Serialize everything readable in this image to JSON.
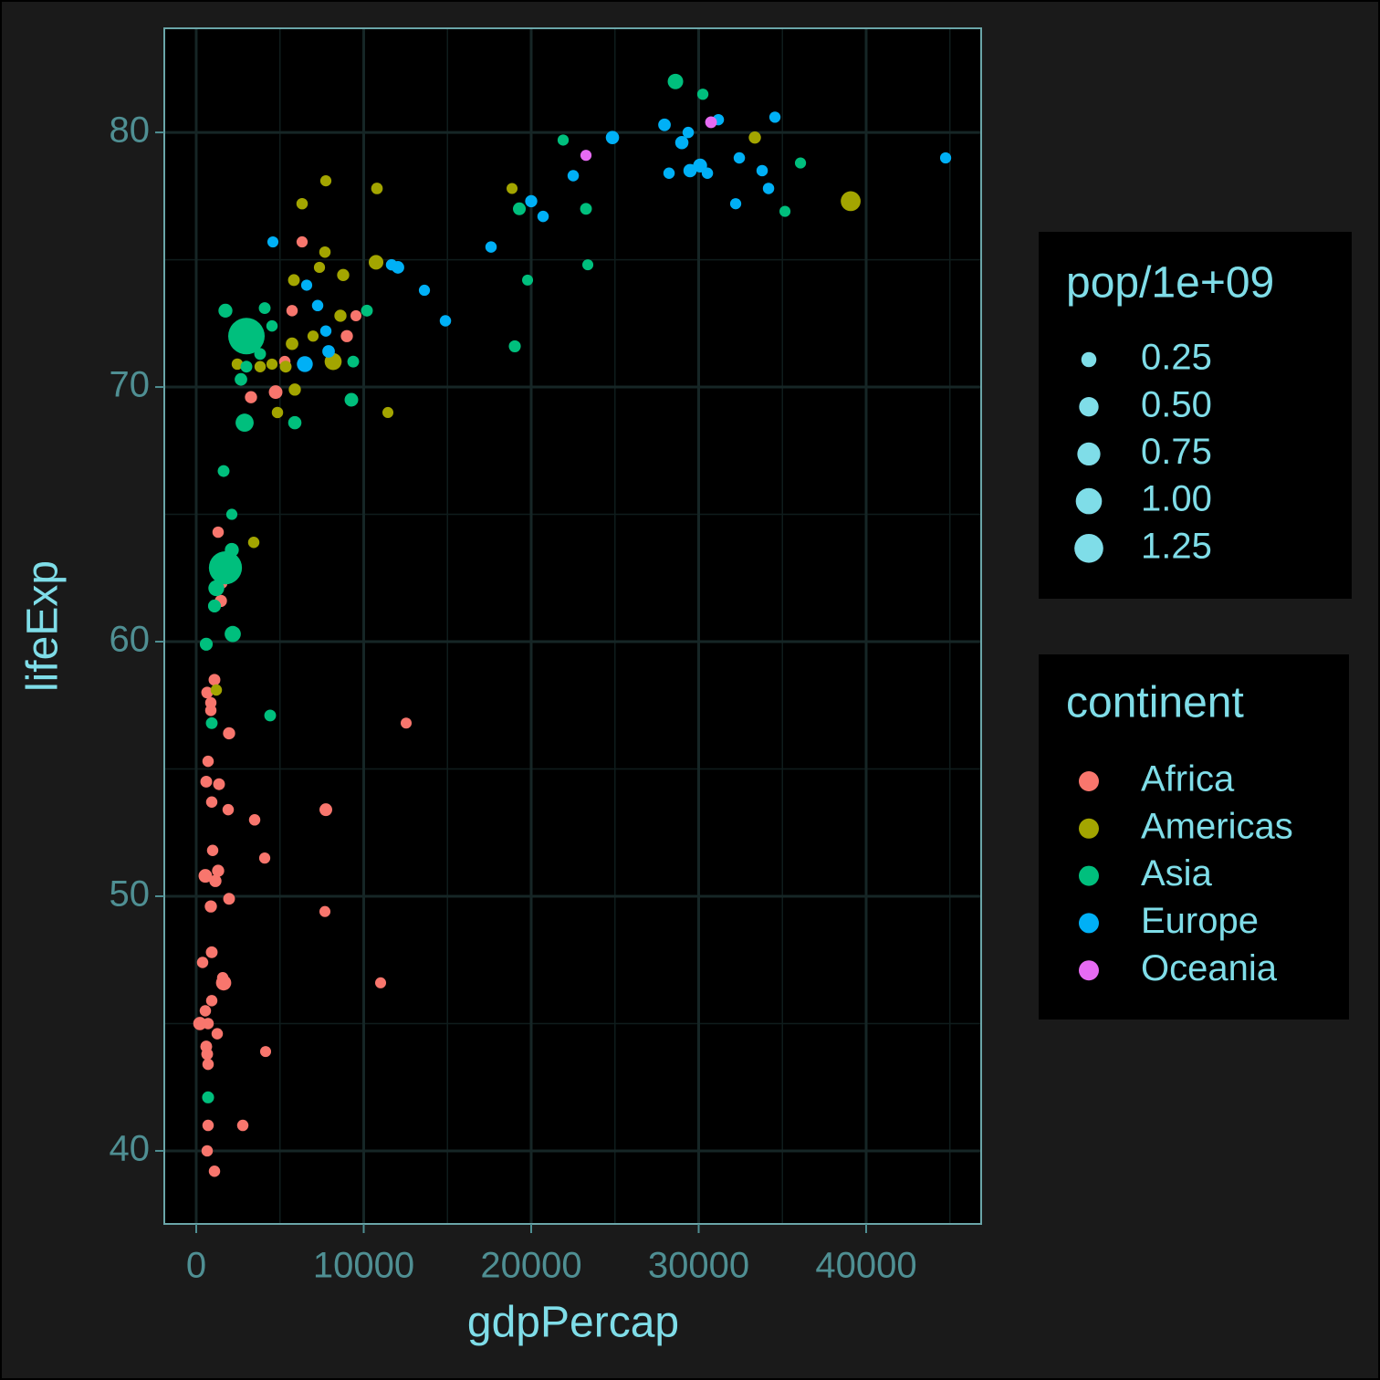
{
  "chart_data": {
    "type": "scatter",
    "x_label": "gdpPercap",
    "y_label": "lifeExp",
    "xlim": [
      -1907,
      46866
    ],
    "ylim": [
      37.13,
      84.09
    ],
    "xticks": [
      0,
      10000,
      20000,
      30000,
      40000
    ],
    "yticks": [
      40,
      50,
      60,
      70,
      80
    ],
    "x_minor_ticks": [
      5000,
      15000,
      25000,
      35000,
      45000
    ],
    "y_minor_ticks": [
      45,
      55,
      65,
      75
    ],
    "grid": true,
    "size_legend": {
      "title": "pop/1e+09",
      "breaks": [
        {
          "value": 0.25,
          "label": "0.25"
        },
        {
          "value": 0.5,
          "label": "0.50"
        },
        {
          "value": 0.75,
          "label": "0.75"
        },
        {
          "value": 1.0,
          "label": "1.00"
        },
        {
          "value": 1.25,
          "label": "1.25"
        }
      ]
    },
    "color_legend": {
      "title": "continent"
    },
    "series": [
      {
        "name": "Africa",
        "color": "#F8766D",
        "x": [
          6322,
          5723,
          9538,
          8993,
          5287,
          4742,
          3270,
          1308,
          1526,
          1472,
          1090,
          654,
          872,
          872,
          12535,
          1962,
          708,
          599,
          1362,
          926,
          1908,
          7739,
          3488,
          981,
          4088,
          1308,
          545,
          1145,
          1962,
          872,
          7685,
          926,
          1581,
          1635,
          11009,
          381,
          926,
          545,
          218,
          708,
          1254,
          599,
          654,
          708,
          4142,
          708,
          2780,
          654,
          1090
        ],
        "values": [
          75.7,
          73.0,
          72.8,
          72.0,
          71.0,
          69.8,
          69.6,
          64.3,
          62.3,
          61.6,
          58.5,
          58.0,
          57.6,
          57.3,
          56.8,
          56.4,
          55.3,
          54.5,
          54.4,
          53.7,
          53.4,
          53.4,
          53.0,
          51.8,
          51.5,
          51.0,
          50.8,
          50.6,
          49.9,
          49.6,
          49.4,
          47.8,
          46.8,
          46.6,
          46.6,
          47.4,
          45.9,
          45.5,
          45.0,
          45.0,
          44.6,
          44.1,
          43.8,
          43.4,
          43.9,
          41.0,
          41.0,
          40.0,
          39.2
        ],
        "sizes": [
          0.005,
          0.01,
          0.001,
          0.03,
          0.01,
          0.07,
          0.03,
          0.01,
          0.01,
          0.03,
          0.02,
          0.02,
          0.01,
          0.01,
          0.001,
          0.03,
          0.01,
          0.02,
          0.02,
          0.01,
          0.01,
          0.045,
          0.01,
          0.01,
          0.005,
          0.03,
          0.07,
          0.03,
          0.02,
          0.03,
          0.002,
          0.02,
          0.01,
          0.12,
          0.001,
          0.01,
          0.01,
          0.01,
          0.06,
          0.01,
          0.01,
          0.02,
          0.02,
          0.01,
          0.001,
          0.01,
          0.01,
          0.01,
          0.01
        ]
      },
      {
        "name": "Americas",
        "color": "#A3A500",
        "x": [
          7739,
          10791,
          6322,
          18857,
          39077,
          33354,
          7685,
          7358,
          10737,
          8775,
          5832,
          6976,
          8611,
          5723,
          2453,
          4524,
          3815,
          5341,
          8175,
          5886,
          4851,
          11445,
          3434,
          1199
        ],
        "values": [
          78.1,
          77.8,
          77.2,
          77.8,
          77.3,
          79.8,
          75.3,
          74.7,
          74.9,
          74.4,
          74.2,
          72.0,
          72.8,
          71.7,
          70.9,
          70.9,
          70.8,
          70.8,
          71.0,
          69.9,
          69.0,
          69.0,
          63.9,
          58.1
        ],
        "sizes": [
          0.004,
          0.015,
          0.01,
          0.001,
          0.29,
          0.031,
          0.01,
          0.005,
          0.1,
          0.03,
          0.02,
          0.005,
          0.03,
          0.04,
          0.01,
          0.005,
          0.01,
          0.02,
          0.18,
          0.03,
          0.01,
          0.001,
          0.01,
          0.01
        ]
      },
      {
        "name": "Asia",
        "color": "#00BF7D",
        "x": [
          28613,
          30248,
          21909,
          23272,
          19293,
          19784,
          23381,
          36079,
          35153,
          19021,
          4088,
          4524,
          10192,
          1744,
          2998,
          3815,
          2998,
          2671,
          9374,
          9265,
          5886,
          2889,
          1635,
          2125,
          2125,
          1744,
          1199,
          1090,
          2180,
          599,
          4415,
          926,
          708
        ],
        "values": [
          82.0,
          81.5,
          79.7,
          77.0,
          77.0,
          74.2,
          74.8,
          78.8,
          76.9,
          71.6,
          73.1,
          72.4,
          73.0,
          73.0,
          72.0,
          71.3,
          70.8,
          70.3,
          71.0,
          69.5,
          68.6,
          68.6,
          66.7,
          65.0,
          63.6,
          62.9,
          62.1,
          61.4,
          60.3,
          59.9,
          57.1,
          56.8,
          42.1
        ],
        "sizes": [
          0.127,
          0.007,
          0.006,
          0.02,
          0.047,
          0.001,
          0.001,
          0.004,
          0.002,
          0.025,
          0.02,
          0.01,
          0.02,
          0.08,
          1.28,
          0.02,
          0.02,
          0.04,
          0.02,
          0.07,
          0.06,
          0.22,
          0.02,
          0.005,
          0.08,
          1.03,
          0.14,
          0.05,
          0.15,
          0.05,
          0.02,
          0.02,
          0.025
        ]
      },
      {
        "name": "Europe",
        "color": "#00B0F6",
        "x": [
          4578,
          6594,
          7249,
          7739,
          7903,
          6485,
          11663,
          12044,
          13625,
          14879,
          17603,
          20002,
          20710,
          22509,
          24852,
          27959,
          29376,
          28994,
          28231,
          29485,
          30085,
          30521,
          31175,
          32427,
          33790,
          34171,
          32209,
          34553,
          44744
        ],
        "values": [
          75.7,
          74.0,
          73.2,
          72.2,
          71.4,
          70.9,
          74.8,
          74.7,
          73.8,
          72.6,
          75.5,
          77.3,
          76.7,
          78.3,
          79.8,
          80.3,
          80.0,
          79.6,
          78.4,
          78.5,
          78.7,
          78.4,
          80.5,
          79.0,
          78.5,
          77.8,
          77.2,
          80.6,
          79.0
        ],
        "sizes": [
          0.003,
          0.004,
          0.01,
          0.008,
          0.04,
          0.14,
          0.01,
          0.04,
          0.005,
          0.01,
          0.01,
          0.03,
          0.01,
          0.01,
          0.06,
          0.04,
          0.01,
          0.06,
          0.01,
          0.06,
          0.08,
          0.01,
          0.008,
          0.01,
          0.01,
          0.01,
          0.005,
          0.007,
          0.005
        ]
      },
      {
        "name": "Oceania",
        "color": "#E76BF3",
        "x": [
          30738,
          23272
        ],
        "values": [
          80.4,
          79.1
        ],
        "sizes": [
          0.02,
          0.004
        ]
      }
    ]
  }
}
